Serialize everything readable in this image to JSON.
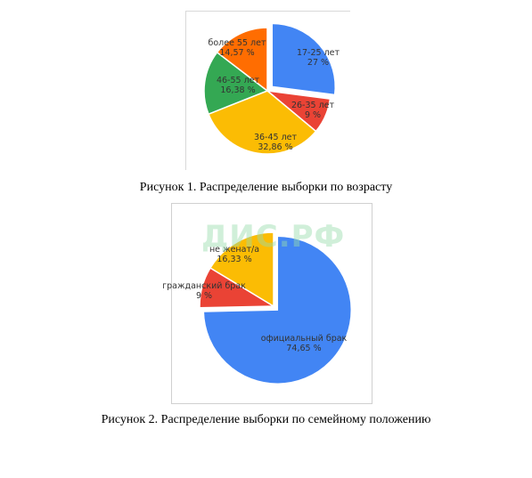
{
  "captions": {
    "figure1": "Рисунок 1. Распределение выборки по возрасту",
    "figure2": "Рисунок 2. Распределение выборки по семейному положению"
  },
  "watermark": "ДИС.РФ",
  "chart_data": [
    {
      "type": "pie",
      "title": "",
      "slices": [
        {
          "label": "17-25 лет",
          "value": 27,
          "display": "27 %",
          "color": "#4285f4",
          "explode": true
        },
        {
          "label": "26-35 лет",
          "value": 9,
          "display": "9 %",
          "color": "#ea4335",
          "explode": false
        },
        {
          "label": "36-45 лет",
          "value": 32.86,
          "display": "32,86 %",
          "color": "#fbbc04",
          "explode": false
        },
        {
          "label": "46-55 лет",
          "value": 16.38,
          "display": "16,38 %",
          "color": "#34a853",
          "explode": false
        },
        {
          "label": "более 55 лет",
          "value": 14.57,
          "display": "14,57 %",
          "color": "#ff6d01",
          "explode": false
        }
      ]
    },
    {
      "type": "pie",
      "title": "",
      "slices": [
        {
          "label": "официальный брак",
          "value": 74.65,
          "display": "74,65 %",
          "color": "#4285f4",
          "explode": true
        },
        {
          "label": "гражданский брак",
          "value": 9,
          "display": "9 %",
          "color": "#ea4335",
          "explode": false
        },
        {
          "label": "не женат/а",
          "value": 16.33,
          "display": "16,33 %",
          "color": "#fbbc04",
          "explode": false
        }
      ]
    }
  ]
}
